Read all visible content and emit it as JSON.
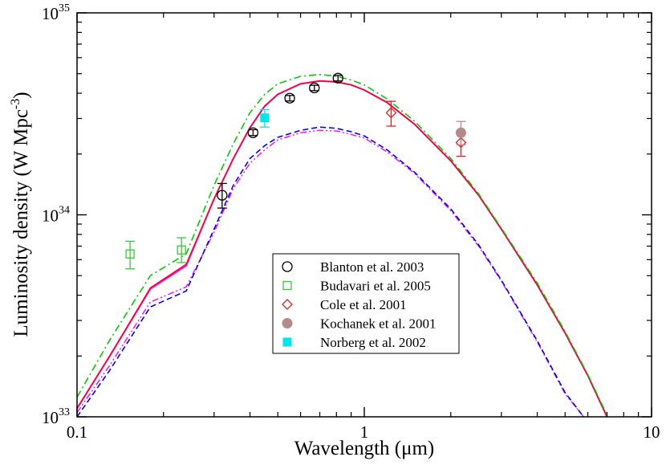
{
  "chart_data": {
    "type": "line",
    "title": "",
    "xlabel": "Wavelength (μm)",
    "ylabel": "Luminosity density (W Mpc",
    "ylabel_exp": "-3",
    "ylabel_tail": ")",
    "xscale": "log",
    "yscale": "log",
    "xlim": [
      0.1,
      10
    ],
    "ylim": [
      1e+33,
      1e+35
    ],
    "x_ticks": [
      {
        "value": 0.1,
        "label": "0.1"
      },
      {
        "value": 1,
        "label": "1"
      },
      {
        "value": 10,
        "label": "10"
      }
    ],
    "y_ticks": [
      {
        "value": 1e+33,
        "base": "10",
        "exp": "33"
      },
      {
        "value": 1e+34,
        "base": "10",
        "exp": "34"
      },
      {
        "value": 1e+35,
        "base": "10",
        "exp": "35"
      }
    ],
    "grid": false,
    "legend_position": "bottom-center",
    "curves": [
      {
        "style": "solid",
        "color": "#ff00ff",
        "width": 2.0,
        "x": [
          0.1,
          0.13,
          0.18,
          0.24,
          0.3,
          0.35,
          0.4,
          0.45,
          0.5,
          0.6,
          0.7,
          0.8,
          0.9,
          1.0,
          1.2,
          1.5,
          2.0,
          2.5,
          3.0,
          4.0,
          5.0,
          6.0,
          7.0
        ],
        "y": [
          1.1e+33,
          2e+33,
          4.3e+33,
          5.6e+33,
          1.2e+34,
          1.9e+34,
          2.7e+34,
          3.45e+34,
          3.95e+34,
          4.45e+34,
          4.6e+34,
          4.55e+34,
          4.4e+34,
          4.15e+34,
          3.6e+34,
          2.8e+34,
          1.85e+34,
          1.25e+34,
          8.5e+33,
          4.5e+33,
          2.6e+33,
          1.6e+33,
          1e+33
        ]
      },
      {
        "style": "solid",
        "color": "#ff0000",
        "width": 1.4,
        "x": [
          0.1,
          0.13,
          0.18,
          0.24,
          0.3,
          0.35,
          0.4,
          0.45,
          0.5,
          0.6,
          0.7,
          0.8,
          0.9,
          1.0,
          1.2,
          1.5,
          2.0,
          2.5,
          3.0,
          4.0,
          5.0,
          6.0,
          7.0
        ],
        "y": [
          1.1e+33,
          2e+33,
          4.35e+33,
          5.7e+33,
          1.2e+34,
          1.9e+34,
          2.7e+34,
          3.45e+34,
          3.95e+34,
          4.45e+34,
          4.6e+34,
          4.55e+34,
          4.4e+34,
          4.15e+34,
          3.6e+34,
          2.8e+34,
          1.85e+34,
          1.25e+34,
          8.5e+33,
          4.5e+33,
          2.6e+33,
          1.6e+33,
          1e+33
        ]
      },
      {
        "style": "dashdot",
        "color": "#00cc00",
        "width": 1.6,
        "x": [
          0.1,
          0.13,
          0.18,
          0.24,
          0.3,
          0.35,
          0.4,
          0.45,
          0.5,
          0.6,
          0.7,
          0.8,
          0.9,
          1.0,
          1.2,
          1.5,
          2.0,
          2.5,
          3.0,
          4.0,
          5.0,
          6.0,
          7.0
        ],
        "y": [
          1.25e+33,
          2.4e+33,
          5e+33,
          6.4e+33,
          1.4e+34,
          2.25e+34,
          3.2e+34,
          3.95e+34,
          4.45e+34,
          4.85e+34,
          4.95e+34,
          4.85e+34,
          4.65e+34,
          4.4e+34,
          3.75e+34,
          2.9e+34,
          1.9e+34,
          1.27e+34,
          8.6e+33,
          4.6e+33,
          2.65e+33,
          1.62e+33,
          1.02e+33
        ]
      },
      {
        "style": "dashdotdot",
        "color": "#ff00ff",
        "width": 1.4,
        "x": [
          0.1,
          0.13,
          0.18,
          0.24,
          0.3,
          0.35,
          0.4,
          0.45,
          0.5,
          0.6,
          0.7,
          0.8,
          0.9,
          1.0,
          1.2,
          1.5,
          2.0,
          2.5,
          3.0,
          4.0,
          5.0,
          5.8
        ],
        "y": [
          1.05e+33,
          1.8e+33,
          3.7e+33,
          4.4e+33,
          8.2e+33,
          1.35e+34,
          1.8e+34,
          2.1e+34,
          2.35e+34,
          2.55e+34,
          2.62e+34,
          2.6e+34,
          2.5e+34,
          2.4e+34,
          2.05e+34,
          1.6e+34,
          1.05e+34,
          7e+33,
          4.7e+33,
          2.35e+33,
          1.3e+33,
          1e+33
        ]
      },
      {
        "style": "dashed",
        "color": "#0000ff",
        "width": 1.6,
        "x": [
          0.1,
          0.13,
          0.18,
          0.24,
          0.3,
          0.35,
          0.4,
          0.45,
          0.5,
          0.6,
          0.7,
          0.8,
          0.9,
          1.0,
          1.2,
          1.5,
          2.0,
          2.5,
          3.0,
          4.0,
          5.0,
          5.8
        ],
        "y": [
          1e+33,
          1.7e+33,
          3.5e+33,
          4.2e+33,
          8.5e+33,
          1.4e+34,
          1.9e+34,
          2.2e+34,
          2.42e+34,
          2.62e+34,
          2.72e+34,
          2.68e+34,
          2.58e+34,
          2.46e+34,
          2.1e+34,
          1.62e+34,
          1.07e+34,
          7.1e+33,
          4.75e+33,
          2.38e+33,
          1.32e+33,
          1e+33
        ]
      }
    ],
    "series": [
      {
        "name": "Blanton et al. 2003",
        "marker": "circle-open",
        "color": "#000000",
        "points": [
          {
            "x": 0.32,
            "y": 1.25e+34,
            "yerr_lo": 1.08e+34,
            "yerr_hi": 1.43e+34
          },
          {
            "x": 0.41,
            "y": 2.55e+34,
            "yerr_lo": 2.47e+34,
            "yerr_hi": 2.64e+34
          },
          {
            "x": 0.55,
            "y": 3.78e+34,
            "yerr_lo": 3.66e+34,
            "yerr_hi": 3.9e+34
          },
          {
            "x": 0.67,
            "y": 4.25e+34,
            "yerr_lo": 4.12e+34,
            "yerr_hi": 4.38e+34
          },
          {
            "x": 0.81,
            "y": 4.75e+34,
            "yerr_lo": 4.6e+34,
            "yerr_hi": 4.9e+34
          }
        ]
      },
      {
        "name": "Budavari et al. 2005",
        "marker": "square-open",
        "color": "#33cc33",
        "points": [
          {
            "x": 0.153,
            "y": 6.4e+33,
            "yerr_lo": 5.4e+33,
            "yerr_hi": 7.4e+33
          },
          {
            "x": 0.231,
            "y": 6.7e+33,
            "yerr_lo": 5.8e+33,
            "yerr_hi": 7.7e+33
          }
        ]
      },
      {
        "name": "Cole et al. 2001",
        "marker": "diamond-open",
        "color": "#dd2222",
        "points": [
          {
            "x": 1.24,
            "y": 3.2e+34,
            "yerr_lo": 2.75e+34,
            "yerr_hi": 3.65e+34
          },
          {
            "x": 2.17,
            "y": 2.28e+34,
            "yerr_lo": 1.95e+34,
            "yerr_hi": 2.6e+34
          }
        ]
      },
      {
        "name": "Kochanek et al. 2001",
        "marker": "circle-filled",
        "color": "#b58a8a",
        "points": [
          {
            "x": 2.17,
            "y": 2.55e+34,
            "yerr_lo": 2.22e+34,
            "yerr_hi": 2.9e+34
          }
        ]
      },
      {
        "name": "Norberg et al. 2002",
        "marker": "square-filled",
        "color": "#00e5ee",
        "points": [
          {
            "x": 0.45,
            "y": 3.02e+34,
            "yerr_lo": 2.72e+34,
            "yerr_hi": 3.32e+34
          }
        ]
      }
    ]
  }
}
